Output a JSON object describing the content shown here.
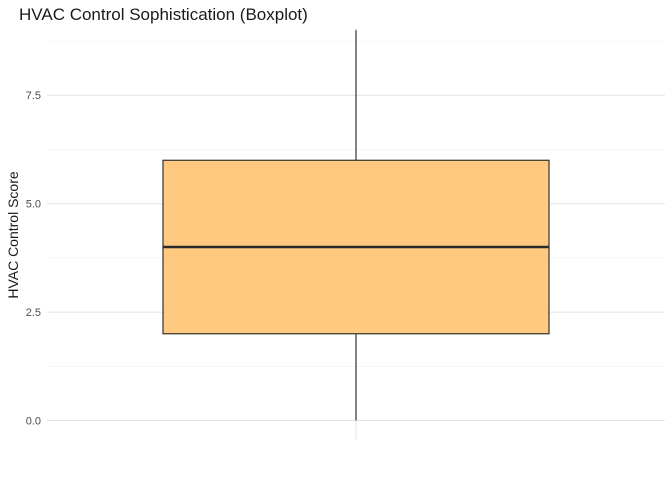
{
  "chart_data": {
    "type": "boxplot",
    "title": "HVAC Control Sophistication (Boxplot)",
    "xlabel": "",
    "ylabel": "HVAC Control Score",
    "ylim": [
      -0.45,
      9.05
    ],
    "y_ticks": [
      0.0,
      2.5,
      5.0,
      7.5
    ],
    "y_tick_labels": [
      "0.0",
      "2.5",
      "5.0",
      "7.5"
    ],
    "minor_grid": [
      1.25,
      3.75,
      6.25,
      8.75
    ],
    "grid": true,
    "box": {
      "min": 0,
      "q1": 2,
      "median": 4,
      "q3": 6,
      "max": 9
    },
    "colors": {
      "box_fill": "#ffc97f",
      "box_stroke": "#333333",
      "median": "#2b2b2b",
      "grid_major": "#e4e4e4",
      "grid_minor": "#f1f1f1"
    }
  }
}
